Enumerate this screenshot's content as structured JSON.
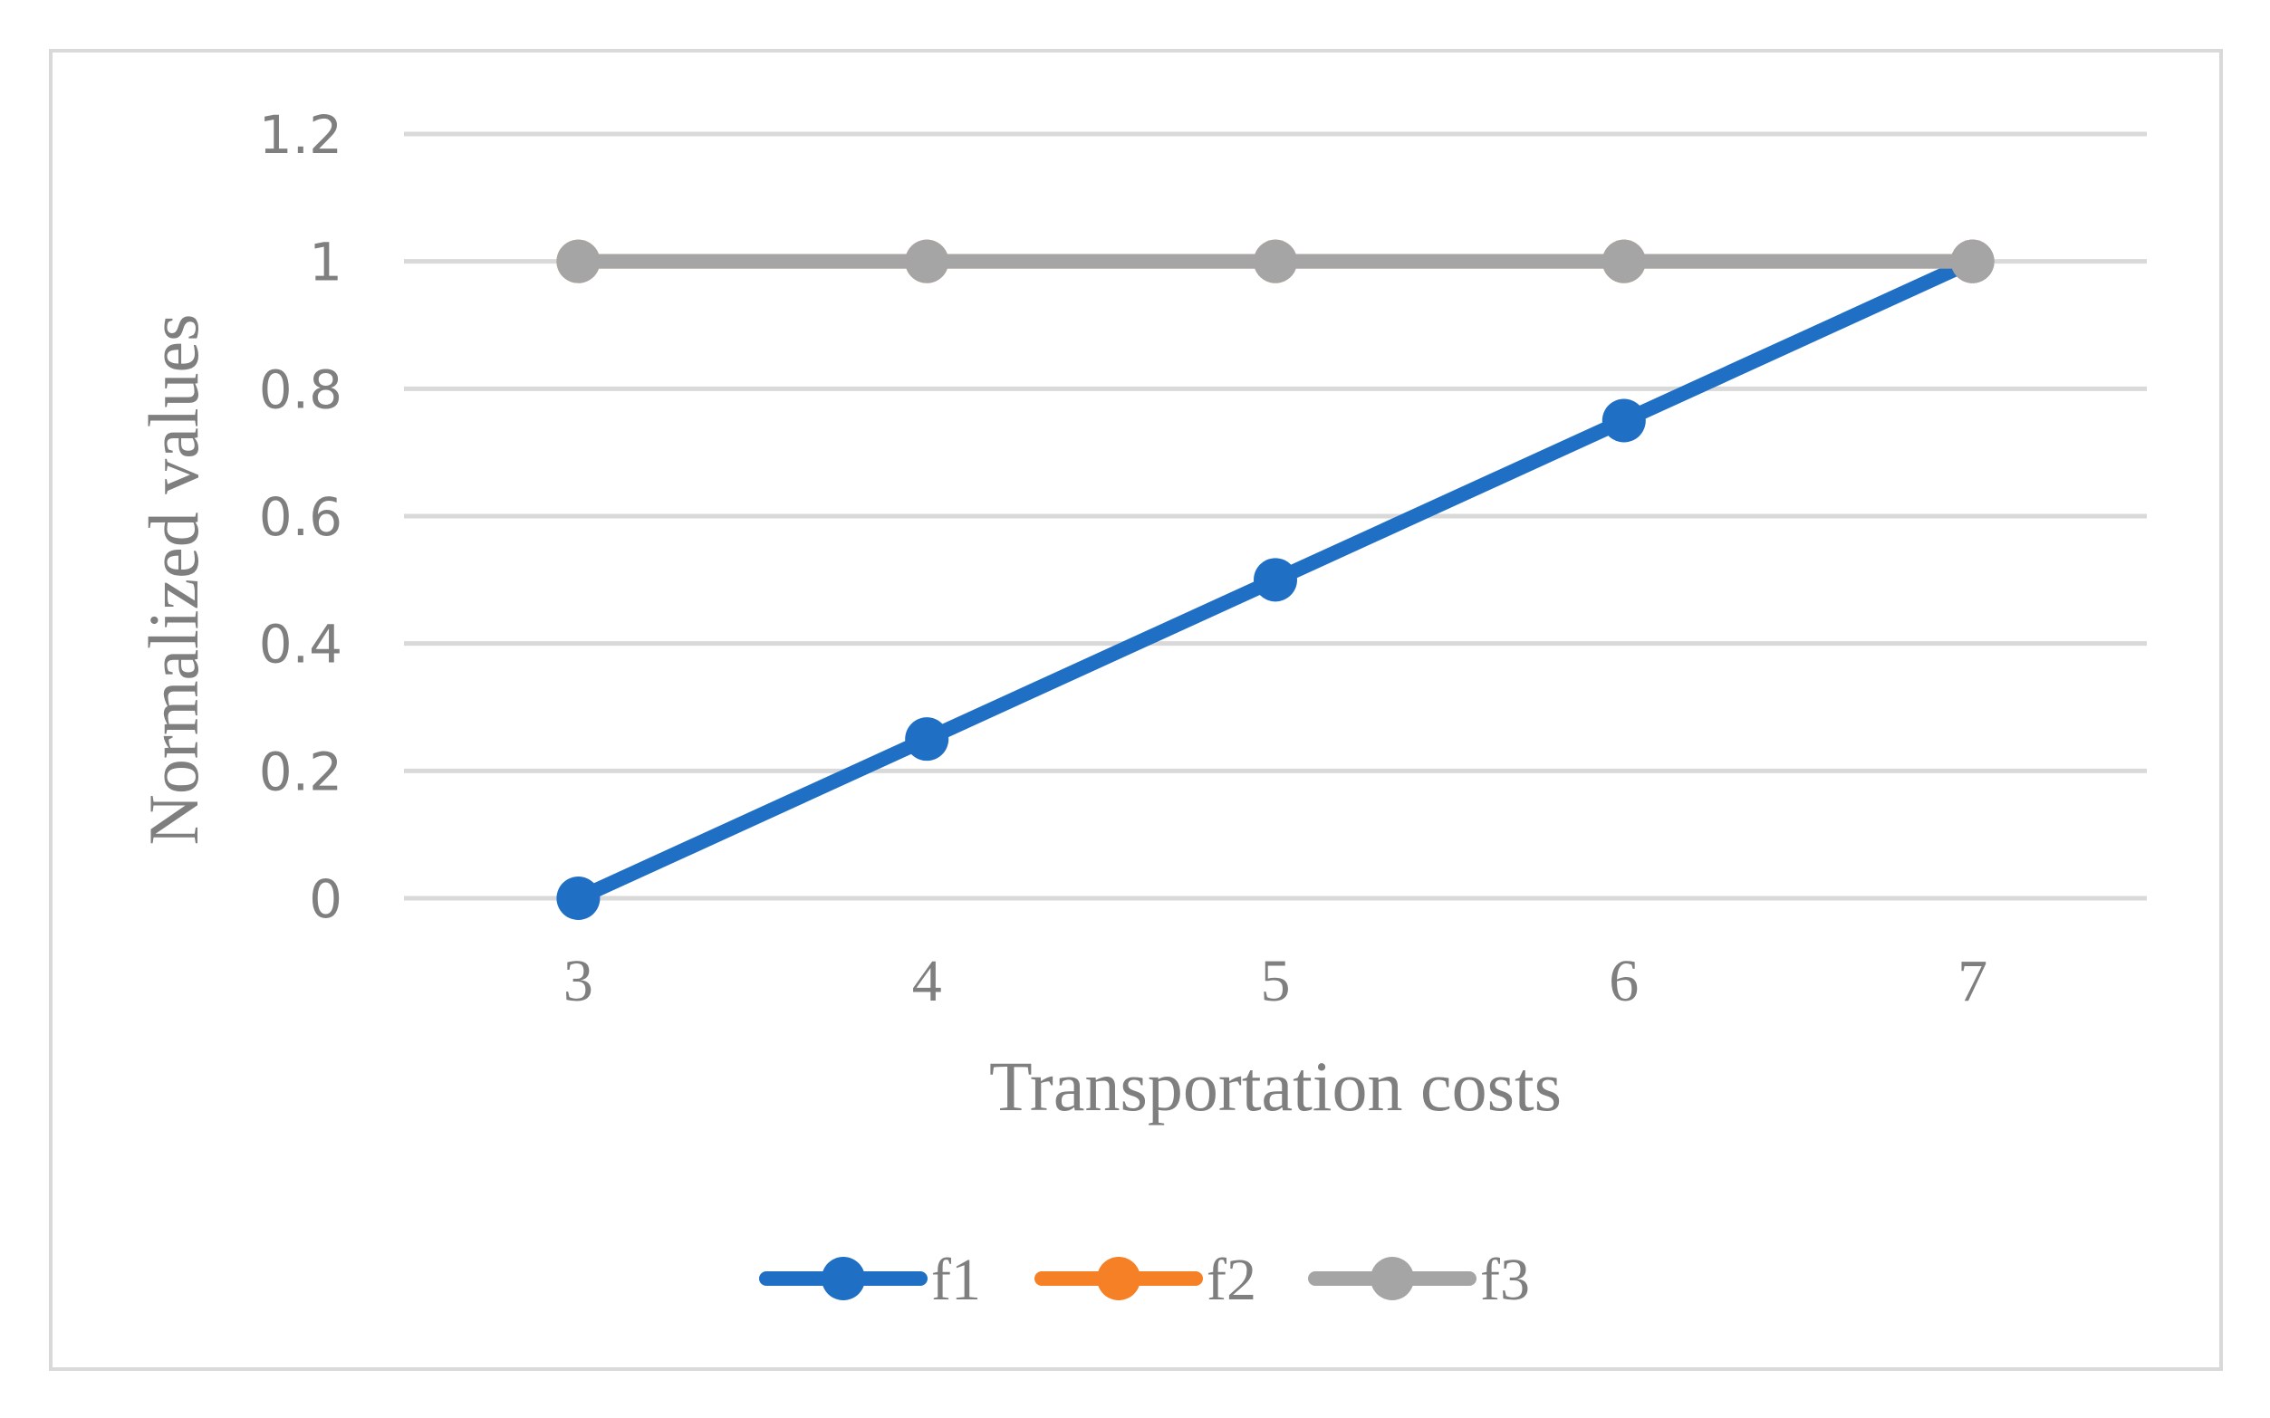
{
  "chart_data": {
    "type": "line",
    "title": "",
    "xlabel": "Transportation costs",
    "ylabel": "Normalized values",
    "categories": [
      "3",
      "4",
      "5",
      "6",
      "7"
    ],
    "ylim": [
      0,
      1.2
    ],
    "yticks": [
      "0",
      "0.2",
      "0.4",
      "0.6",
      "0.8",
      "1",
      "1.2"
    ],
    "grid": "horizontal",
    "legend_position": "bottom",
    "series": [
      {
        "name": "f1",
        "color": "#1f6fc5",
        "values": [
          0,
          0.25,
          0.5,
          0.75,
          1
        ]
      },
      {
        "name": "f2",
        "color": "#f58025",
        "values": [
          1,
          1,
          1,
          1,
          1
        ]
      },
      {
        "name": "f3",
        "color": "#a5a5a5",
        "values": [
          1,
          1,
          1,
          1,
          1
        ]
      }
    ]
  }
}
